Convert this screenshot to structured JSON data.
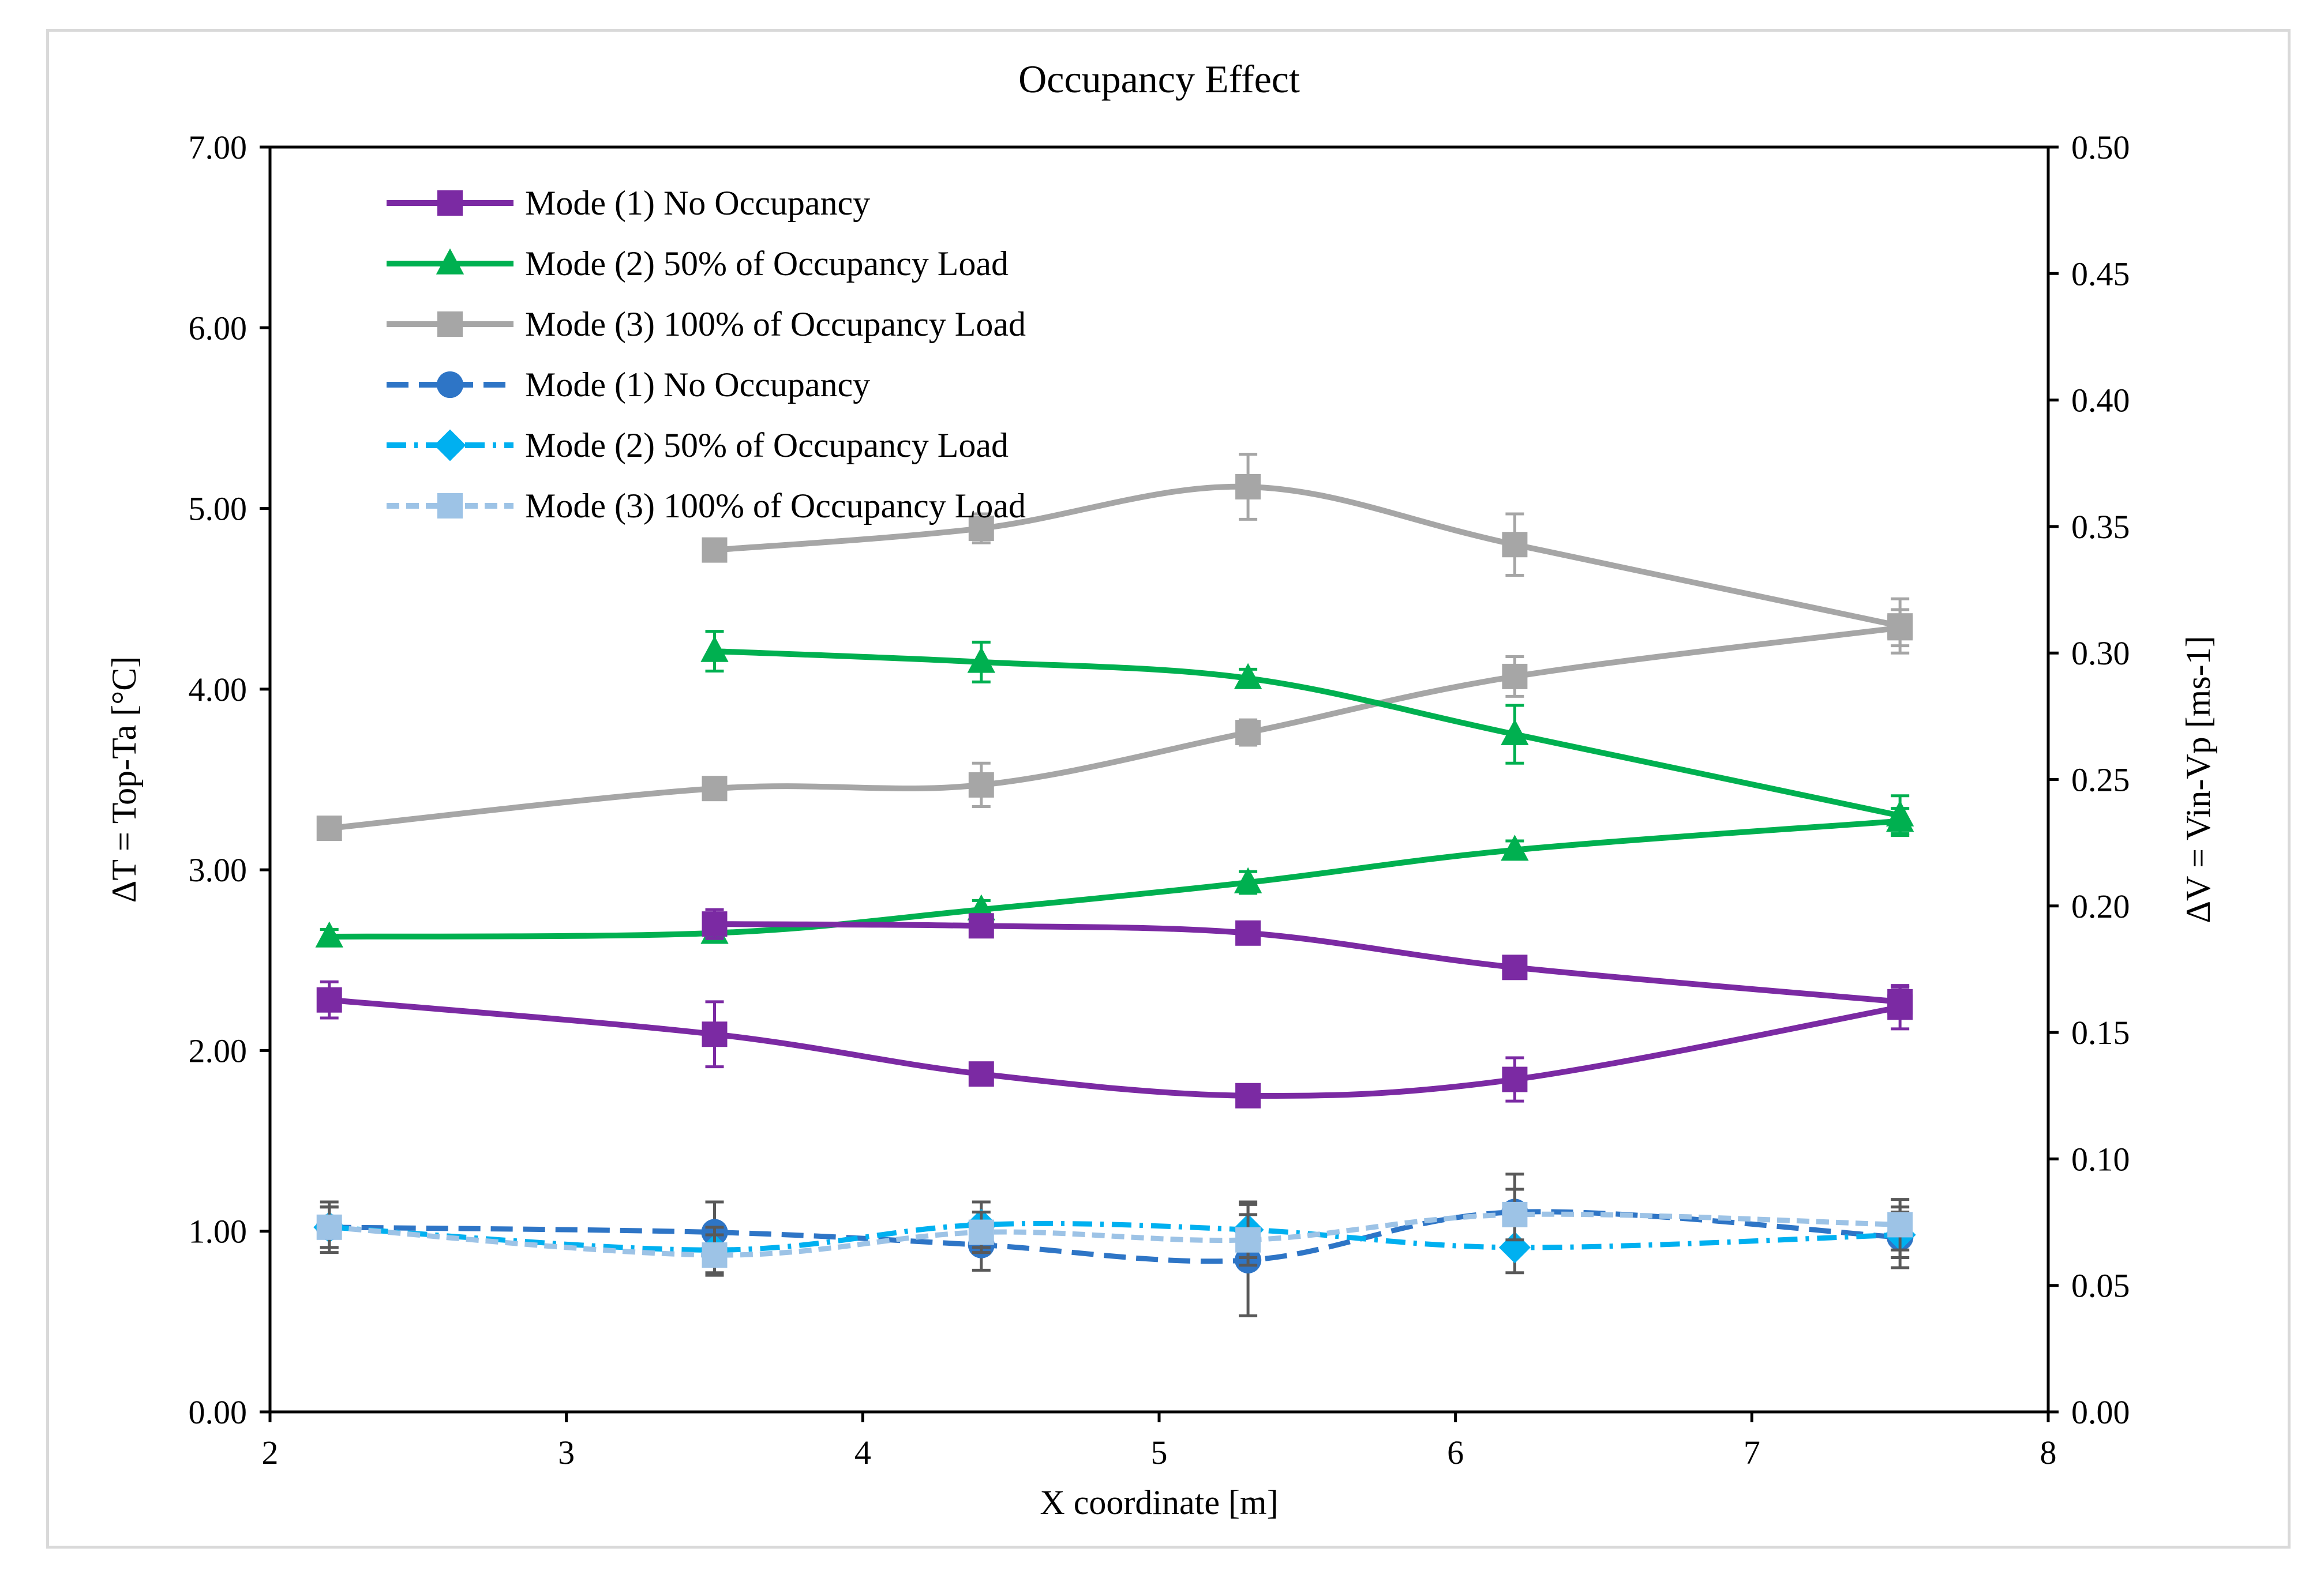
{
  "chart_data": {
    "type": "line",
    "title": "Occupancy Effect",
    "xlabel": "X coordinate [m]",
    "ylabel_left": "ΔT = Top-Ta [°C]",
    "ylabel_right": "ΔV = Vin-Vp [ms-1]",
    "xlim": [
      2,
      8
    ],
    "xticks": [
      "2",
      "3",
      "4",
      "5",
      "6",
      "7",
      "8"
    ],
    "ylim_left": [
      0,
      7
    ],
    "yticks_left": [
      "0.00",
      "1.00",
      "2.00",
      "3.00",
      "4.00",
      "5.00",
      "6.00",
      "7.00"
    ],
    "ylim_right": [
      0,
      0.5
    ],
    "yticks_right": [
      "0.00",
      "0.05",
      "0.10",
      "0.15",
      "0.20",
      "0.25",
      "0.30",
      "0.35",
      "0.40",
      "0.45",
      "0.50"
    ],
    "grid": false,
    "legend_position": "top-left",
    "series": [
      {
        "name": "Mode (1) No Occupancy",
        "axis": "left",
        "color": "#7b2aa3",
        "marker": "square",
        "dash": "solid",
        "x": [
          2.2,
          3.5,
          4.4,
          5.3,
          6.2,
          7.5
        ],
        "y": [
          2.28,
          2.09,
          1.87,
          1.75,
          1.84,
          2.24
        ],
        "err": [
          0.1,
          0.18,
          0.06,
          0.04,
          0.12,
          0.12
        ]
      },
      {
        "name": "Mode (2) 50% of Occupancy Load",
        "axis": "left",
        "color": "#00b050",
        "marker": "triangle",
        "dash": "solid",
        "x": [
          2.2,
          3.5,
          4.4,
          5.3,
          6.2,
          7.5
        ],
        "y": [
          2.63,
          2.65,
          2.78,
          2.93,
          3.11,
          3.27
        ],
        "err": [
          0.04,
          0.04,
          0.05,
          0.06,
          0.05,
          0.07
        ]
      },
      {
        "name": "Mode (3) 100% of Occupancy Load",
        "axis": "left",
        "color": "#a6a6a6",
        "marker": "square",
        "dash": "solid",
        "x": [
          2.2,
          3.5,
          4.4,
          5.3,
          6.2,
          7.5
        ],
        "y": [
          3.23,
          3.45,
          3.47,
          3.76,
          4.07,
          4.34
        ],
        "err": [
          0.03,
          0.04,
          0.12,
          0.07,
          0.11,
          0.1
        ]
      },
      {
        "name": "Mode (1) No Occupancy",
        "axis": "left",
        "color": "#7b2aa3",
        "marker": "square",
        "dash": "solid",
        "legend": false,
        "x": [
          3.5,
          4.4,
          5.3,
          6.2,
          7.5
        ],
        "y": [
          2.7,
          2.69,
          2.65,
          2.46,
          2.27
        ],
        "err": [
          0.08,
          0.05,
          0.04,
          0.05,
          0.08
        ]
      },
      {
        "name": "Mode (2) 50% of Occupancy Load",
        "axis": "left",
        "color": "#00b050",
        "marker": "triangle",
        "dash": "solid",
        "legend": false,
        "x": [
          3.5,
          4.4,
          5.3,
          6.2,
          7.5
        ],
        "y": [
          4.21,
          4.15,
          4.06,
          3.75,
          3.3
        ],
        "err": [
          0.11,
          0.11,
          0.05,
          0.16,
          0.11
        ]
      },
      {
        "name": "Mode (3) 100% of Occupancy Load",
        "axis": "left",
        "color": "#a6a6a6",
        "marker": "square",
        "dash": "solid",
        "legend": false,
        "x": [
          3.5,
          4.4,
          5.3,
          6.2,
          7.5
        ],
        "y": [
          4.77,
          4.89,
          5.12,
          4.8,
          4.35
        ],
        "err": [
          0.06,
          0.08,
          0.18,
          0.17,
          0.15
        ]
      },
      {
        "name": "Mode (1) No Occupancy",
        "axis": "right",
        "color": "#2e75c6",
        "marker": "circle",
        "dash": "dash",
        "x": [
          2.2,
          3.5,
          4.4,
          5.3,
          6.2,
          7.5
        ],
        "y": [
          0.073,
          0.071,
          0.066,
          0.06,
          0.079,
          0.069
        ],
        "err": [
          0.01,
          0.012,
          0.01,
          0.022,
          0.015,
          0.012
        ]
      },
      {
        "name": "Mode (2) 50% of Occupancy Load",
        "axis": "right",
        "color": "#00b0f0",
        "marker": "diamond",
        "dash": "dashdot",
        "x": [
          2.2,
          3.5,
          4.4,
          5.3,
          6.2,
          7.5
        ],
        "y": [
          0.073,
          0.064,
          0.074,
          0.072,
          0.065,
          0.07
        ],
        "err": [
          0.008,
          0.009,
          0.009,
          0.011,
          0.01,
          0.009
        ]
      },
      {
        "name": "Mode (3) 100% of Occupancy Load",
        "axis": "right",
        "color": "#9dc3e6",
        "marker": "square",
        "dash": "shortdash",
        "x": [
          2.2,
          3.5,
          4.4,
          5.3,
          6.2,
          7.5
        ],
        "y": [
          0.073,
          0.062,
          0.071,
          0.068,
          0.078,
          0.074
        ],
        "err": [
          0.008,
          0.008,
          0.008,
          0.01,
          0.01,
          0.01
        ]
      }
    ],
    "error_bar_color": "#595959"
  }
}
